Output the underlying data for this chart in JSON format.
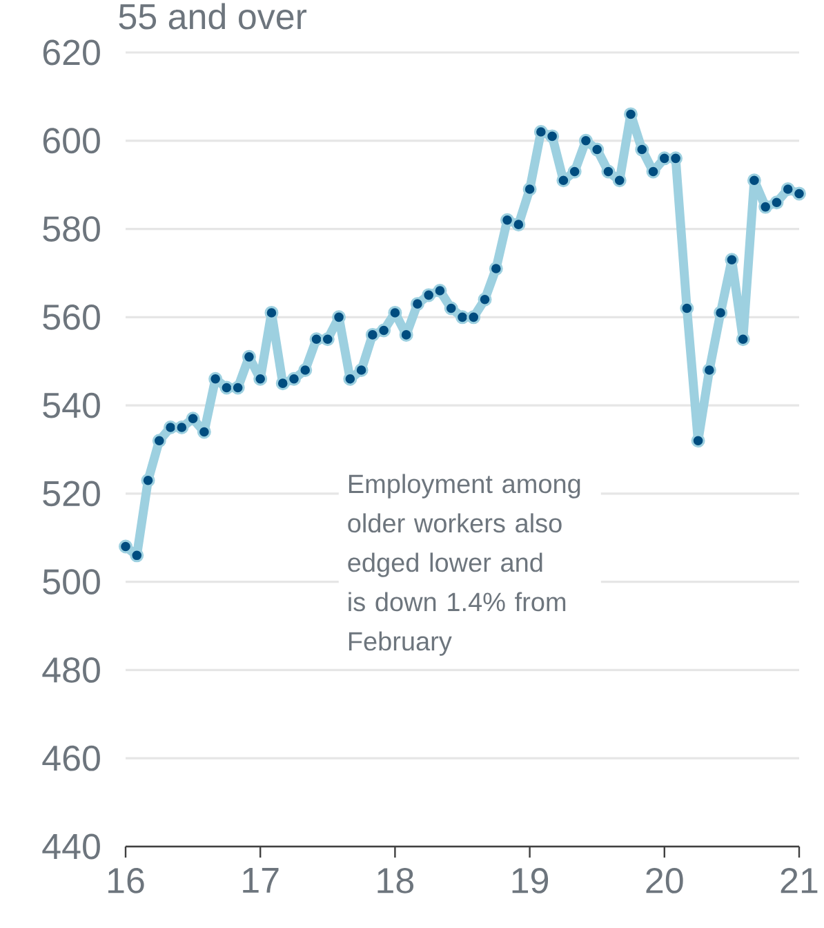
{
  "chart_data": {
    "type": "line",
    "title": "55 and over",
    "x": [
      16,
      16.0833,
      16.1667,
      16.25,
      16.3333,
      16.4167,
      16.5,
      16.5833,
      16.6667,
      16.75,
      16.8333,
      16.9167,
      17,
      17.0833,
      17.1667,
      17.25,
      17.3333,
      17.4167,
      17.5,
      17.5833,
      17.6667,
      17.75,
      17.8333,
      17.9167,
      18,
      18.0833,
      18.1667,
      18.25,
      18.3333,
      18.4167,
      18.5,
      18.5833,
      18.6667,
      18.75,
      18.8333,
      18.9167,
      19,
      19.0833,
      19.1667,
      19.25,
      19.3333,
      19.4167,
      19.5,
      19.5833,
      19.6667,
      19.75,
      19.8333,
      19.9167,
      20,
      20.0833,
      20.1667,
      20.25,
      20.3333,
      20.4167,
      20.5,
      20.5833,
      20.6667,
      20.75,
      20.8333,
      20.9167,
      21
    ],
    "series": [
      {
        "color": "#9dd0e0",
        "values": [
          508,
          506,
          523,
          532,
          535,
          535,
          537,
          534,
          546,
          544,
          544,
          551,
          546,
          561,
          545,
          546,
          548,
          555,
          555,
          560,
          546,
          548,
          556,
          557,
          561,
          556,
          563,
          565,
          566,
          562,
          560,
          560,
          564,
          571,
          582,
          581,
          589,
          602,
          601,
          591,
          593,
          600,
          598,
          593,
          591,
          606,
          598,
          593,
          596,
          596,
          562,
          532,
          548,
          561,
          573,
          555,
          591,
          585,
          586,
          589,
          588
        ]
      }
    ],
    "xlim": [
      16,
      21
    ],
    "ylim": [
      440,
      620
    ],
    "xticks": [
      {
        "value": 16,
        "label": "16"
      },
      {
        "value": 17,
        "label": "17"
      },
      {
        "value": 18,
        "label": "18"
      },
      {
        "value": 19,
        "label": "19"
      },
      {
        "value": 20,
        "label": "20"
      },
      {
        "value": 21,
        "label": "21"
      }
    ],
    "yticks": [
      440,
      460,
      480,
      500,
      520,
      540,
      560,
      580,
      600,
      620
    ],
    "grid": "y",
    "marker": "circle",
    "line_style": "solid",
    "annotations": [
      "Employment among older workers also edged lower and is down 1.4% from February"
    ]
  }
}
